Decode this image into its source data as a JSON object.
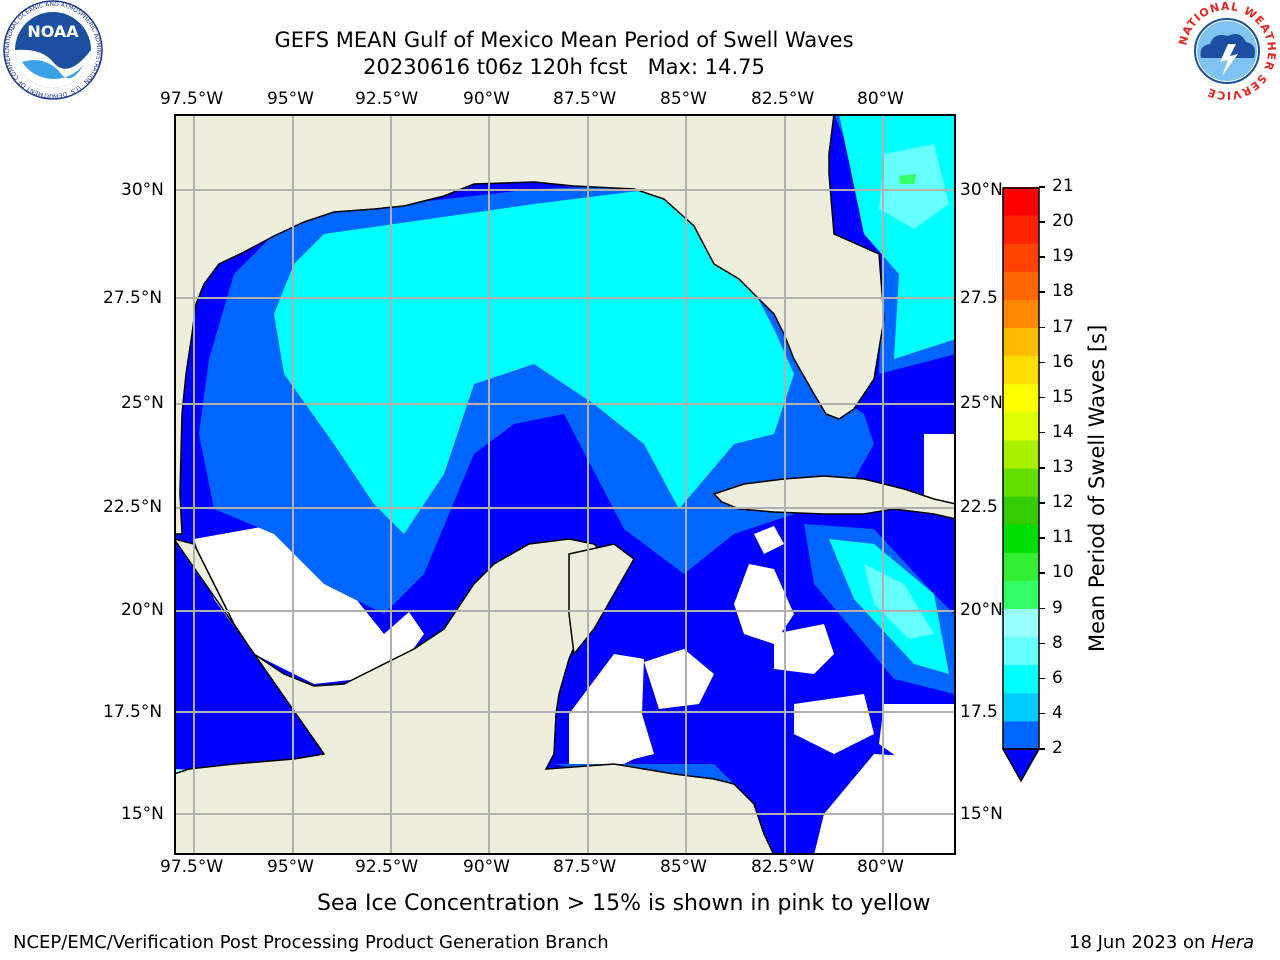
{
  "title": {
    "line1": "GEFS MEAN Gulf of Mexico Mean Period of Swell Waves",
    "line2": "20230616 t06z 120h fcst   Max: 14.75"
  },
  "map": {
    "lon_labels": [
      "97.5°W",
      "95°W",
      "92.5°W",
      "90°W",
      "87.5°W",
      "85°W",
      "82.5°W",
      "80°W"
    ],
    "lat_labels_left": [
      "30°N",
      "27.5°N",
      "25°N",
      "22.5°N",
      "20°N",
      "17.5°N",
      "15°N"
    ],
    "lat_labels_right": [
      "30°N",
      "27.5",
      "25°N",
      "22.5",
      "20°N",
      "17.5",
      "15°N"
    ],
    "land_color": "#eeeedd",
    "grid_color": "#b0b0b0"
  },
  "colorbar": {
    "label": "Mean Period of Swell Waves [s]",
    "ticks": [
      "2",
      "4",
      "6",
      "8",
      "9",
      "10",
      "11",
      "12",
      "13",
      "14",
      "15",
      "16",
      "17",
      "18",
      "19",
      "20",
      "21"
    ],
    "colors": [
      "#0066ff",
      "#00ccff",
      "#00ffff",
      "#66ffff",
      "#99ffff",
      "#33ff66",
      "#33ee33",
      "#00dd00",
      "#33cc00",
      "#66dd00",
      "#aaee00",
      "#ddff00",
      "#ffff00",
      "#ffdd00",
      "#ffbb00",
      "#ff8800",
      "#ff6600",
      "#ff4400",
      "#ff2200",
      "#ff0000"
    ],
    "extend_color": "#0000ff"
  },
  "subtitle": "Sea Ice Concentration > 15% is shown in pink to yellow",
  "footer": {
    "left": "NCEP/EMC/Verification Post Processing Product Generation Branch",
    "right_date": "18 Jun 2023 on ",
    "right_host": "Hera"
  },
  "logos": {
    "noaa_text": "NOAA",
    "noaa_ring": "NATIONAL OCEANIC AND ATMOSPHERIC ADMINISTRATION · U.S. DEPARTMENT OF COMMERCE",
    "nws_ring": "NATIONAL WEATHER SERVICE"
  }
}
